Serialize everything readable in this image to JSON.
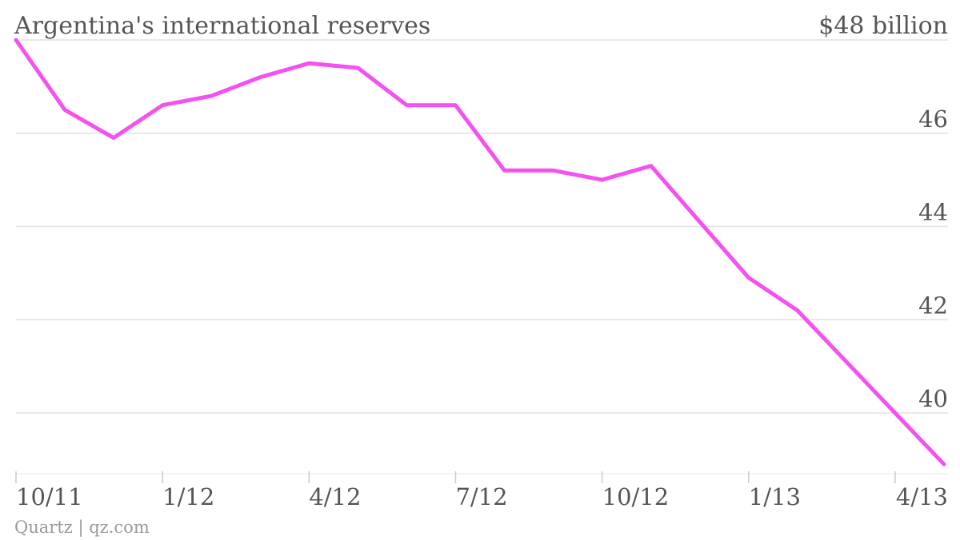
{
  "chart_data": {
    "type": "line",
    "title": "Argentina's international reserves",
    "unit_label": "$48 billion",
    "credit": "Quartz | qz.com",
    "x_ticks": [
      {
        "label": "10/11",
        "month": 0
      },
      {
        "label": "1/12",
        "month": 3
      },
      {
        "label": "4/12",
        "month": 6
      },
      {
        "label": "7/12",
        "month": 9
      },
      {
        "label": "10/12",
        "month": 12
      },
      {
        "label": "1/13",
        "month": 15
      },
      {
        "label": "4/13",
        "month": 18
      }
    ],
    "y_ticks": [
      46,
      44,
      42,
      40
    ],
    "ylim": [
      38.9,
      48
    ],
    "xlim": [
      0,
      19
    ],
    "grid": true,
    "line_color": "#f451f0",
    "series": [
      {
        "x": [
          0,
          1,
          2,
          3,
          4,
          5,
          6,
          7,
          8,
          9,
          10,
          11,
          12,
          13,
          14,
          15,
          16,
          17,
          18,
          19
        ],
        "values": [
          48.0,
          46.5,
          45.9,
          46.6,
          46.8,
          47.2,
          47.5,
          47.4,
          46.6,
          46.6,
          45.2,
          45.2,
          45.0,
          45.3,
          44.1,
          42.9,
          42.2,
          41.1,
          40.0,
          38.9
        ]
      }
    ]
  }
}
